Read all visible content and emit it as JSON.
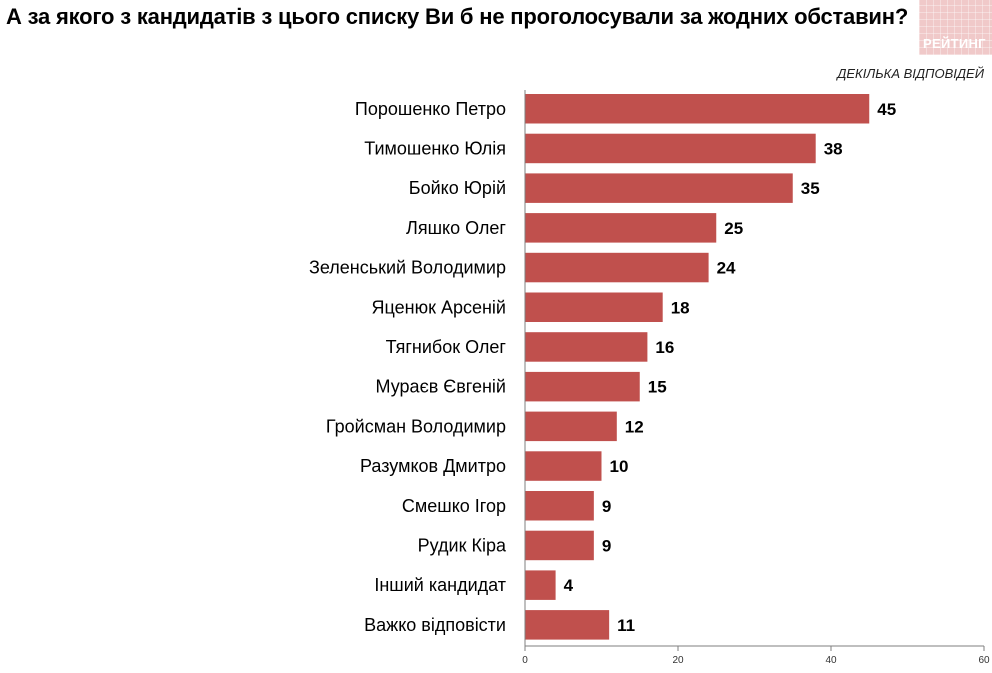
{
  "header": {
    "title": "А за якого з кандидатів з цього списку Ви б не проголосували за жодних обставин?",
    "logo_text": "РЕЙТИНГ",
    "note": "ДЕКІЛЬКА ВІДПОВІДЕЙ"
  },
  "colors": {
    "bar": "#c0504d",
    "logo_bg": "#f0c9c9",
    "axis": "#7f7f7f"
  },
  "chart_data": {
    "type": "bar",
    "orientation": "horizontal",
    "title": "А за якого з кандидатів з цього списку Ви б не проголосували за жодних обставин?",
    "categories": [
      "Порошенко Петро",
      "Тимошенко Юлія",
      "Бойко Юрій",
      "Ляшко Олег",
      "Зеленський Володимир",
      "Яценюк  Арсеній",
      "Тягнибок Олег",
      "Мураєв Євгеній",
      "Гройсман Володимир",
      "Разумков Дмитро",
      "Смешко Ігор",
      "Рудик Кіра",
      "Інший кандидат",
      "Важко відповісти"
    ],
    "values": [
      45,
      38,
      35,
      25,
      24,
      18,
      16,
      15,
      12,
      10,
      9,
      9,
      4,
      11
    ],
    "xlim": [
      0,
      60
    ],
    "xticks": [
      0,
      20,
      40,
      60
    ],
    "xlabel": "",
    "ylabel": "",
    "grid": false,
    "legend": "none"
  }
}
